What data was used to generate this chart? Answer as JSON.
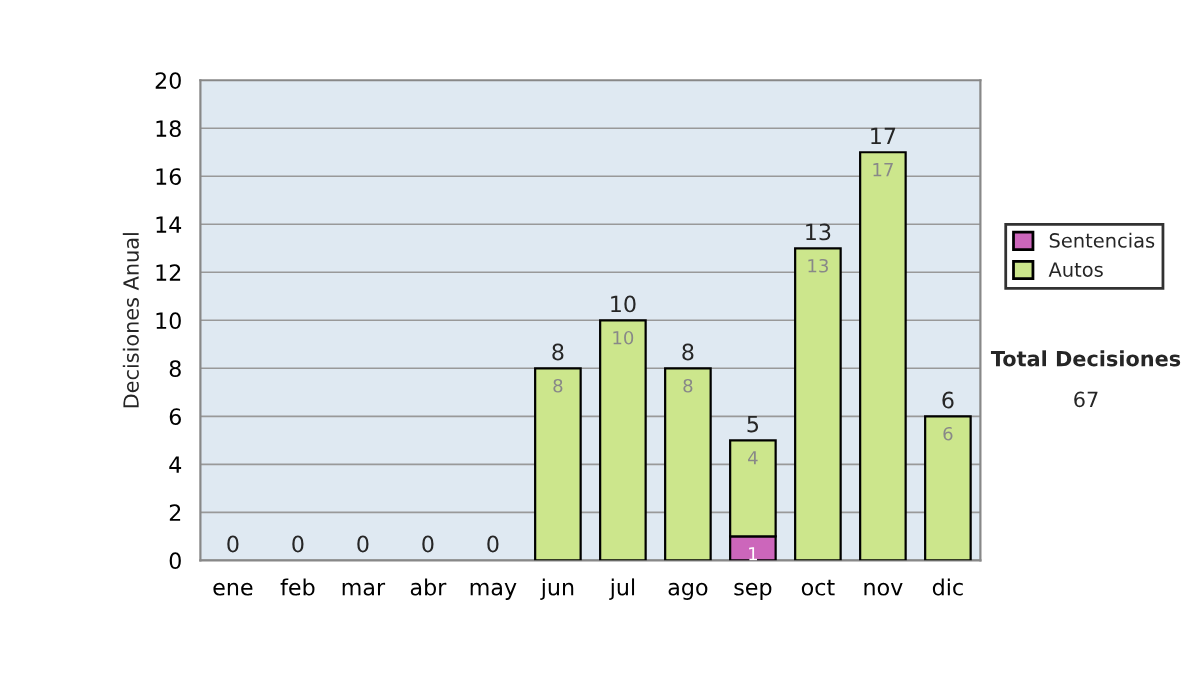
{
  "chart_data": {
    "type": "bar",
    "stacked": true,
    "ylabel": "Decisiones Anual",
    "categories": [
      "ene",
      "feb",
      "mar",
      "abr",
      "may",
      "jun",
      "jul",
      "ago",
      "sep",
      "oct",
      "nov",
      "dic"
    ],
    "series": [
      {
        "name": "Sentencias",
        "color": "#cc66bb",
        "values": [
          0,
          0,
          0,
          0,
          0,
          0,
          0,
          0,
          1,
          0,
          0,
          0
        ],
        "value_labels": [
          null,
          null,
          null,
          null,
          null,
          null,
          null,
          null,
          "1",
          null,
          null,
          null
        ]
      },
      {
        "name": "Autos",
        "color": "#cce68c",
        "values": [
          0,
          0,
          0,
          0,
          0,
          8,
          10,
          8,
          4,
          13,
          17,
          6
        ],
        "value_labels": [
          null,
          null,
          null,
          null,
          null,
          "8",
          "10",
          "8",
          "4",
          "13",
          "17",
          "6"
        ]
      }
    ],
    "totals": [
      "0",
      "0",
      "0",
      "0",
      "0",
      "8",
      "10",
      "8",
      "5",
      "13",
      "17",
      "6"
    ],
    "ylim": [
      0,
      20
    ],
    "yticks": [
      0,
      2,
      4,
      6,
      8,
      10,
      12,
      14,
      16,
      18,
      20
    ],
    "grid": "y",
    "legend": "right",
    "annotations": [
      "Total Decisiones",
      "67"
    ]
  }
}
